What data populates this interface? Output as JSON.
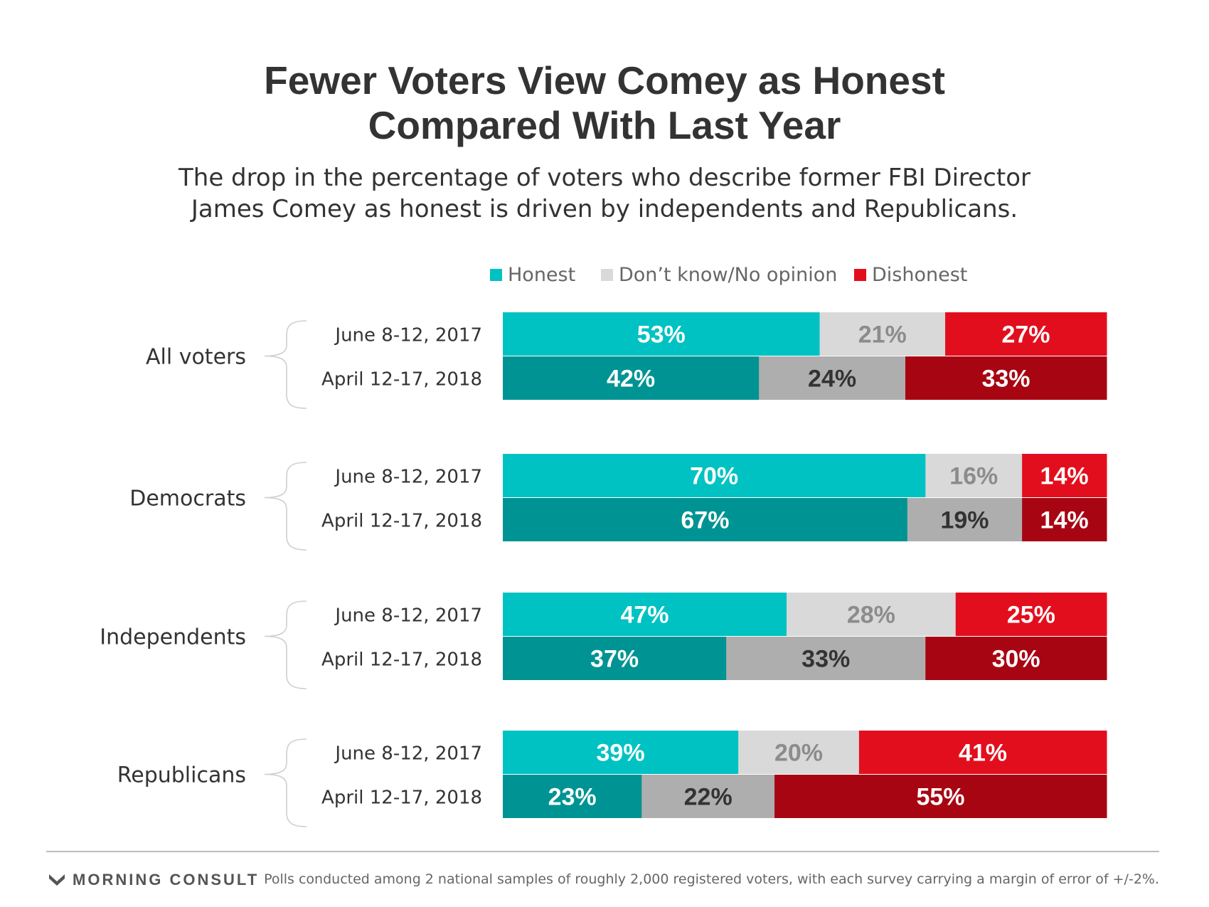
{
  "title_line1": "Fewer Voters View Comey as Honest",
  "title_line2": "Compared With Last Year",
  "subtitle_line1": "The drop in the percentage of voters who describe former FBI Director",
  "subtitle_line2": "James Comey as honest is driven by independents and Republicans.",
  "legend": [
    {
      "label": "Honest",
      "color": "#00c2c2"
    },
    {
      "label": "Don’t know/No opinion",
      "color": "#d9d9d9"
    },
    {
      "label": "Dishonest",
      "color": "#e30e1d"
    }
  ],
  "colors": {
    "honest_2017": "#00c2c2",
    "honest_2018": "#009393",
    "dk_2017": "#d9d9d9",
    "dk_2018": "#aeaeae",
    "dishonest_2017": "#e30e1d",
    "dishonest_2018": "#a80512",
    "label_light": "#ffffff",
    "label_dk_2017": "#8c8c8c",
    "label_dk_2018": "#333333"
  },
  "chart_data": {
    "type": "bar",
    "orientation": "horizontal",
    "stacked": true,
    "unit": "%",
    "series_names": [
      "Honest",
      "Don’t know/No opinion",
      "Dishonest"
    ],
    "groups": [
      {
        "name": "All voters",
        "rows": [
          {
            "period": "June 8-12, 2017",
            "values": [
              53,
              21,
              27
            ]
          },
          {
            "period": "April 12-17, 2018",
            "values": [
              42,
              24,
              33
            ]
          }
        ]
      },
      {
        "name": "Democrats",
        "rows": [
          {
            "period": "June 8-12, 2017",
            "values": [
              70,
              16,
              14
            ]
          },
          {
            "period": "April 12-17, 2018",
            "values": [
              67,
              19,
              14
            ]
          }
        ]
      },
      {
        "name": "Independents",
        "rows": [
          {
            "period": "June 8-12, 2017",
            "values": [
              47,
              28,
              25
            ]
          },
          {
            "period": "April 12-17, 2018",
            "values": [
              37,
              33,
              30
            ]
          }
        ]
      },
      {
        "name": "Republicans",
        "rows": [
          {
            "period": "June 8-12, 2017",
            "values": [
              39,
              20,
              41
            ]
          },
          {
            "period": "April 12-17, 2018",
            "values": [
              23,
              22,
              55
            ]
          }
        ]
      }
    ]
  },
  "footer": {
    "brand": "MORNING CONSULT",
    "note": "Polls conducted among 2 national samples of roughly 2,000 registered voters, with each survey carrying a margin of error of +/-2%."
  }
}
